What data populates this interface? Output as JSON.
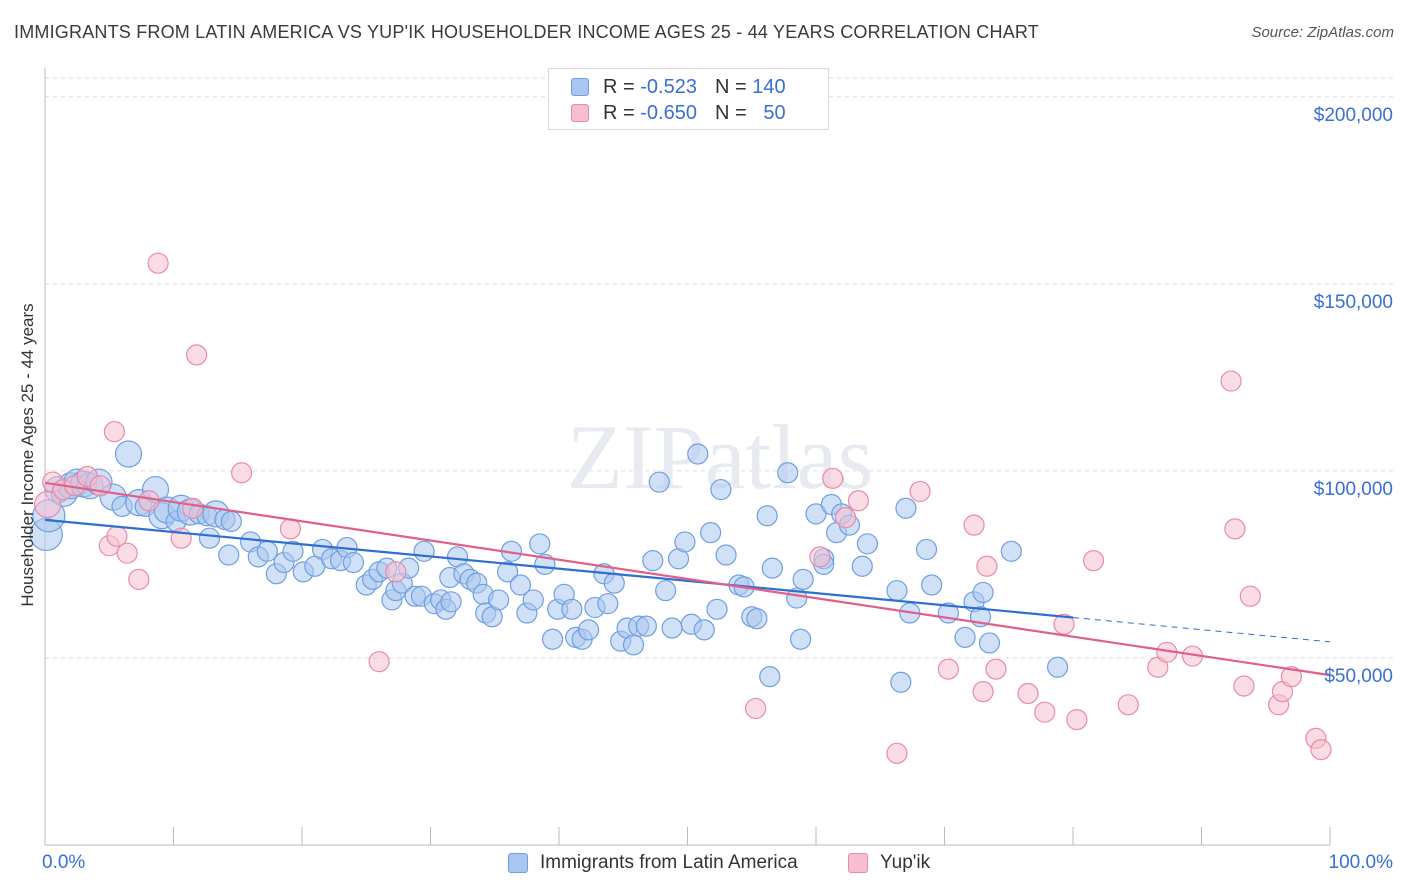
{
  "title": "IMMIGRANTS FROM LATIN AMERICA VS YUP'IK HOUSEHOLDER INCOME AGES 25 - 44 YEARS CORRELATION CHART",
  "source": "Source: ZipAtlas.com",
  "watermark": "ZIPatlas",
  "legend_top": {
    "rows": [
      {
        "r_label": "R =",
        "r_value": "-0.523",
        "n_label": "N =",
        "n_value": "140"
      },
      {
        "r_label": "R =",
        "r_value": "-0.650",
        "n_label": "N =",
        "n_value": "50"
      }
    ]
  },
  "colors": {
    "blue_fill": "#a9c6f0",
    "blue_stroke": "#6f9fe0",
    "blue_line": "#2f6fd0",
    "pink_fill": "#f6bfd0",
    "pink_stroke": "#ea8aa8",
    "pink_line": "#e0608a",
    "axis_text": "#3a6fd6",
    "grid": "#dddddd"
  },
  "chart_data": {
    "type": "scatter",
    "title": "IMMIGRANTS FROM LATIN AMERICA VS YUP'IK HOUSEHOLDER INCOME AGES 25 - 44 YEARS CORRELATION CHART",
    "xlabel": "",
    "ylabel": "Householder Income Ages 25 - 44 years",
    "xlim": [
      0,
      100
    ],
    "ylim": [
      0,
      205000
    ],
    "x_ticks": [
      "0.0%",
      "100.0%"
    ],
    "y_ticks": [
      {
        "value": 50000,
        "label": "$50,000"
      },
      {
        "value": 100000,
        "label": "$100,000"
      },
      {
        "value": 150000,
        "label": "$150,000"
      },
      {
        "value": 200000,
        "label": "$200,000"
      }
    ],
    "grid": true,
    "legend_position": "bottom",
    "series": [
      {
        "name": "Immigrants from Latin America",
        "color": "#a9c6f0",
        "trend": {
          "x": [
            0,
            80
          ],
          "y": [
            86900,
            60800
          ],
          "dashed_to_x": 100,
          "dashed_to_y": 54300
        },
        "points": [
          [
            0.1,
            83000,
            3
          ],
          [
            0.3,
            88000,
            3
          ],
          [
            1.0,
            95000,
            2
          ],
          [
            1.5,
            94000,
            2
          ],
          [
            2.0,
            96000,
            2
          ],
          [
            2.5,
            97000,
            2
          ],
          [
            3.0,
            96500,
            2
          ],
          [
            3.5,
            96000,
            2
          ],
          [
            4.2,
            97000,
            2
          ],
          [
            5.3,
            93000,
            2
          ],
          [
            6.5,
            104500,
            2
          ],
          [
            6.0,
            90500,
            1
          ],
          [
            7.3,
            91500,
            2
          ],
          [
            7.8,
            90500,
            1
          ],
          [
            8.6,
            95000,
            2
          ],
          [
            9.1,
            88000,
            2
          ],
          [
            9.5,
            89500,
            2
          ],
          [
            10.2,
            86500,
            1
          ],
          [
            10.6,
            90000,
            2
          ],
          [
            11.3,
            89000,
            2
          ],
          [
            12.0,
            88500,
            1
          ],
          [
            12.6,
            88000,
            1
          ],
          [
            13.3,
            88500,
            2
          ],
          [
            14.0,
            87000,
            1
          ],
          [
            14.5,
            86500,
            1
          ],
          [
            12.8,
            82000,
            1
          ],
          [
            14.3,
            77500,
            1
          ],
          [
            16.0,
            81000,
            1
          ],
          [
            16.6,
            77000,
            1
          ],
          [
            17.3,
            78500,
            1
          ],
          [
            18.0,
            72500,
            1
          ],
          [
            18.6,
            75500,
            1
          ],
          [
            19.3,
            78500,
            1
          ],
          [
            20.1,
            73000,
            1
          ],
          [
            21.0,
            74500,
            1
          ],
          [
            21.6,
            79000,
            1
          ],
          [
            22.3,
            76500,
            1
          ],
          [
            23.0,
            76000,
            1
          ],
          [
            23.5,
            79500,
            1
          ],
          [
            24.0,
            75500,
            1
          ],
          [
            25.0,
            69500,
            1
          ],
          [
            25.5,
            71000,
            1
          ],
          [
            26.0,
            73000,
            1
          ],
          [
            26.6,
            74000,
            1
          ],
          [
            27.0,
            65500,
            1
          ],
          [
            27.3,
            68000,
            1
          ],
          [
            27.8,
            70000,
            1
          ],
          [
            28.3,
            74000,
            1
          ],
          [
            28.8,
            66500,
            1
          ],
          [
            29.5,
            78500,
            1
          ],
          [
            29.3,
            66500,
            1
          ],
          [
            30.3,
            64500,
            1
          ],
          [
            30.8,
            65500,
            1
          ],
          [
            31.2,
            63000,
            1
          ],
          [
            31.6,
            65000,
            1
          ],
          [
            31.5,
            71500,
            1
          ],
          [
            32.1,
            77000,
            1
          ],
          [
            32.6,
            72500,
            1
          ],
          [
            33.1,
            71000,
            1
          ],
          [
            33.6,
            70000,
            1
          ],
          [
            34.1,
            67000,
            1
          ],
          [
            34.3,
            62000,
            1
          ],
          [
            34.8,
            61000,
            1
          ],
          [
            35.3,
            65500,
            1
          ],
          [
            36.0,
            73000,
            1
          ],
          [
            36.3,
            78500,
            1
          ],
          [
            37.0,
            69500,
            1
          ],
          [
            37.5,
            62000,
            1
          ],
          [
            38.0,
            65500,
            1
          ],
          [
            38.5,
            80500,
            1
          ],
          [
            38.9,
            75000,
            1
          ],
          [
            39.5,
            55000,
            1
          ],
          [
            39.9,
            63000,
            1
          ],
          [
            40.4,
            67000,
            1
          ],
          [
            41.0,
            63000,
            1
          ],
          [
            41.3,
            55500,
            1
          ],
          [
            41.8,
            55000,
            1
          ],
          [
            42.3,
            57500,
            1
          ],
          [
            42.8,
            63500,
            1
          ],
          [
            43.5,
            72500,
            1
          ],
          [
            43.8,
            64500,
            1
          ],
          [
            44.3,
            70000,
            1
          ],
          [
            44.8,
            54500,
            1
          ],
          [
            45.3,
            58000,
            1
          ],
          [
            45.8,
            53500,
            1
          ],
          [
            46.2,
            58500,
            1
          ],
          [
            46.8,
            58500,
            1
          ],
          [
            47.3,
            76000,
            1
          ],
          [
            47.8,
            97000,
            1
          ],
          [
            48.3,
            68000,
            1
          ],
          [
            48.8,
            58000,
            1
          ],
          [
            49.3,
            76500,
            1
          ],
          [
            49.8,
            81000,
            1
          ],
          [
            50.3,
            59000,
            1
          ],
          [
            50.8,
            104500,
            1
          ],
          [
            51.3,
            57500,
            1
          ],
          [
            51.8,
            83500,
            1
          ],
          [
            52.3,
            63000,
            1
          ],
          [
            52.6,
            95000,
            1
          ],
          [
            53.0,
            77500,
            1
          ],
          [
            54.0,
            69500,
            1
          ],
          [
            54.4,
            69000,
            1
          ],
          [
            55.0,
            61000,
            1
          ],
          [
            55.4,
            60500,
            1
          ],
          [
            56.2,
            88000,
            1
          ],
          [
            56.6,
            74000,
            1
          ],
          [
            56.4,
            45000,
            1
          ],
          [
            57.8,
            99500,
            1
          ],
          [
            58.5,
            66000,
            1
          ],
          [
            58.8,
            55000,
            1
          ],
          [
            59.0,
            71000,
            1
          ],
          [
            60.0,
            88500,
            1
          ],
          [
            60.6,
            76500,
            1
          ],
          [
            60.6,
            75000,
            1
          ],
          [
            61.2,
            91000,
            1
          ],
          [
            61.6,
            83500,
            1
          ],
          [
            62.0,
            88500,
            1
          ],
          [
            62.6,
            85500,
            1
          ],
          [
            63.6,
            74500,
            1
          ],
          [
            64.0,
            80500,
            1
          ],
          [
            66.3,
            68000,
            1
          ],
          [
            66.6,
            43500,
            1
          ],
          [
            67.0,
            90000,
            1
          ],
          [
            67.3,
            62000,
            1
          ],
          [
            68.6,
            79000,
            1
          ],
          [
            69.0,
            69500,
            1
          ],
          [
            70.3,
            62000,
            1
          ],
          [
            71.6,
            55500,
            1
          ],
          [
            72.3,
            65000,
            1
          ],
          [
            72.8,
            61000,
            1
          ],
          [
            73.0,
            67500,
            1
          ],
          [
            73.5,
            54000,
            1
          ],
          [
            75.2,
            78500,
            1
          ],
          [
            78.8,
            47500,
            1
          ]
        ]
      },
      {
        "name": "Yup'ik",
        "color": "#f6bfd0",
        "trend": {
          "x": [
            0,
            100
          ],
          "y": [
            96800,
            45400
          ]
        },
        "points": [
          [
            0.2,
            91000,
            2
          ],
          [
            0.6,
            97000,
            1
          ],
          [
            1.4,
            95000,
            1
          ],
          [
            2.3,
            96000,
            1
          ],
          [
            3.3,
            98500,
            1
          ],
          [
            4.3,
            96000,
            1
          ],
          [
            5.0,
            80000,
            1
          ],
          [
            5.4,
            110500,
            1
          ],
          [
            5.6,
            82500,
            1
          ],
          [
            6.4,
            78000,
            1
          ],
          [
            7.3,
            71000,
            1
          ],
          [
            8.1,
            92000,
            1
          ],
          [
            8.8,
            155500,
            1
          ],
          [
            10.6,
            82000,
            1
          ],
          [
            11.5,
            90000,
            1
          ],
          [
            11.8,
            131000,
            1
          ],
          [
            15.3,
            99500,
            1
          ],
          [
            19.1,
            84500,
            1
          ],
          [
            26.0,
            49000,
            1
          ],
          [
            27.3,
            73000,
            1
          ],
          [
            55.3,
            36500,
            1
          ],
          [
            60.3,
            77000,
            1
          ],
          [
            61.3,
            98000,
            1
          ],
          [
            62.3,
            87500,
            1
          ],
          [
            63.3,
            92000,
            1
          ],
          [
            66.3,
            24500,
            1
          ],
          [
            68.1,
            94500,
            1
          ],
          [
            70.3,
            47000,
            1
          ],
          [
            72.3,
            85500,
            1
          ],
          [
            73.0,
            41000,
            1
          ],
          [
            73.3,
            74500,
            1
          ],
          [
            74.0,
            47000,
            1
          ],
          [
            76.5,
            40500,
            1
          ],
          [
            77.8,
            35500,
            1
          ],
          [
            79.3,
            59000,
            1
          ],
          [
            80.3,
            33500,
            1
          ],
          [
            81.6,
            76000,
            1
          ],
          [
            84.3,
            37500,
            1
          ],
          [
            86.6,
            47500,
            1
          ],
          [
            87.3,
            51500,
            1
          ],
          [
            89.3,
            50500,
            1
          ],
          [
            92.3,
            124000,
            1
          ],
          [
            92.6,
            84500,
            1
          ],
          [
            93.3,
            42500,
            1
          ],
          [
            93.8,
            66500,
            1
          ],
          [
            96.0,
            37500,
            1
          ],
          [
            96.3,
            41000,
            1
          ],
          [
            97.0,
            45000,
            1
          ],
          [
            98.9,
            28500,
            1
          ],
          [
            99.3,
            25500,
            1
          ]
        ]
      }
    ]
  },
  "legend_bottom": [
    {
      "label": "Immigrants from Latin America"
    },
    {
      "label": "Yup'ik"
    }
  ]
}
